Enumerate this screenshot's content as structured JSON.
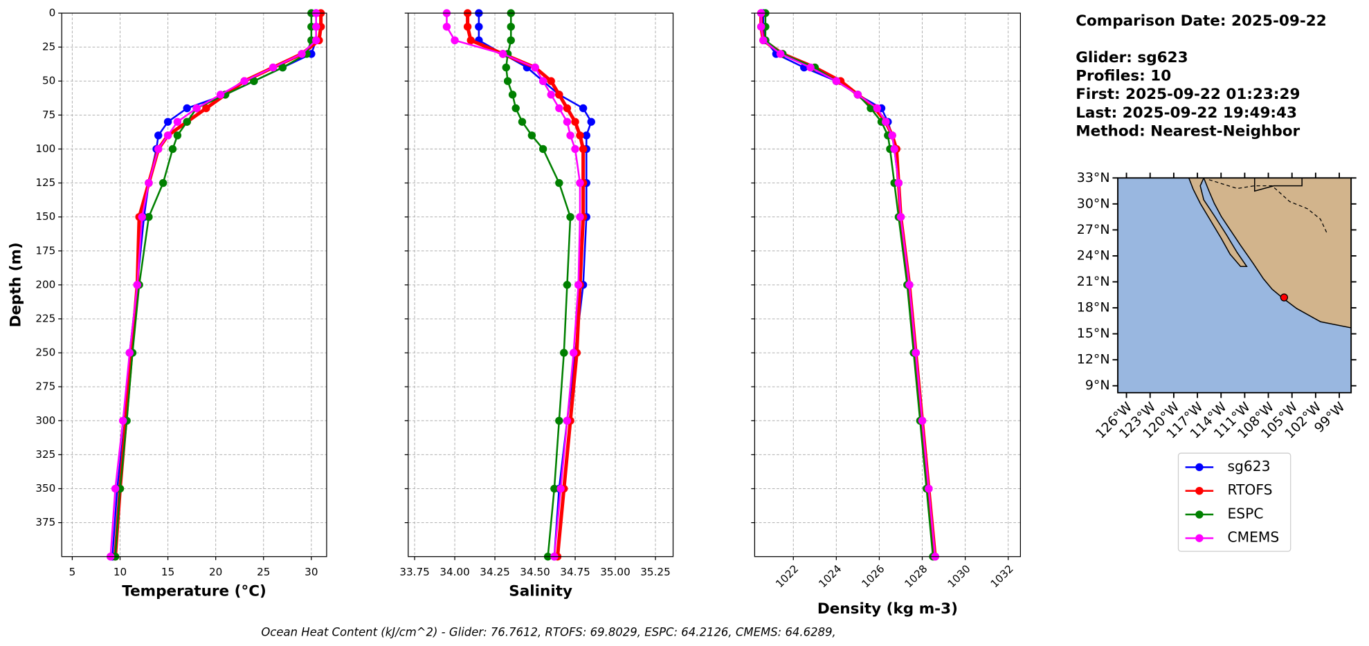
{
  "chart_data": [
    {
      "type": "line",
      "xlabel": "Temperature (°C)",
      "ylabel": "Depth (m)",
      "xlim": [
        3.9,
        31.6
      ],
      "xticks": [
        5,
        10,
        15,
        20,
        25,
        30
      ],
      "ylim": [
        0,
        400
      ],
      "yticks": [
        0,
        25,
        50,
        75,
        100,
        125,
        150,
        175,
        200,
        225,
        250,
        275,
        300,
        325,
        350,
        375
      ],
      "y_inverted": true,
      "grid": true,
      "show_ytick_labels": true,
      "depth": [
        0,
        10,
        20,
        30,
        40,
        50,
        60,
        70,
        80,
        90,
        100,
        125,
        150,
        200,
        250,
        300,
        350,
        400
      ],
      "series": [
        {
          "name": "sg623",
          "color": "#0000ff",
          "values": [
            30.5,
            30.5,
            30.5,
            30,
            27,
            24,
            21,
            17,
            15,
            14,
            13.8,
            13,
            12.5,
            11.8,
            11,
            10.5,
            9.7,
            9.2
          ]
        },
        {
          "name": "RTOFS",
          "color": "#ff0000",
          "values": [
            31,
            31,
            30.8,
            29,
            26,
            23,
            21,
            19,
            17,
            15,
            14,
            13,
            12,
            11.8,
            11.2,
            10.6,
            10,
            9.5
          ]
        },
        {
          "name": "ESPC",
          "color": "#008000",
          "values": [
            30,
            30,
            30,
            29.5,
            27,
            24,
            21,
            18,
            17,
            16,
            15.5,
            14.5,
            13,
            12,
            11.3,
            10.7,
            10,
            9.5
          ]
        },
        {
          "name": "CMEMS",
          "color": "#ff00ff",
          "values": [
            30.5,
            30.5,
            30.5,
            29,
            26,
            23,
            20.5,
            18,
            16,
            15,
            14,
            13,
            12.3,
            11.8,
            11,
            10.3,
            9.5,
            9.0
          ]
        }
      ]
    },
    {
      "type": "line",
      "xlabel": "Salinity",
      "xlim": [
        33.71,
        35.36
      ],
      "xticks": [
        33.75,
        {
          "value": 34,
          "label": "34.00"
        },
        34.25,
        {
          "value": 34.5,
          "label": "34.50"
        },
        34.75,
        {
          "value": 35,
          "label": "35.00"
        },
        35.25
      ],
      "ylim": [
        0,
        400
      ],
      "yticks": [
        0,
        25,
        50,
        75,
        100,
        125,
        150,
        175,
        200,
        225,
        250,
        275,
        300,
        325,
        350,
        375
      ],
      "y_inverted": true,
      "grid": true,
      "show_ytick_labels": false,
      "depth": [
        0,
        10,
        20,
        30,
        40,
        50,
        60,
        70,
        80,
        90,
        100,
        125,
        150,
        200,
        250,
        300,
        350,
        400
      ],
      "series": [
        {
          "name": "sg623",
          "color": "#0000ff",
          "values": [
            34.15,
            34.15,
            34.15,
            34.3,
            34.45,
            34.55,
            34.65,
            34.8,
            34.85,
            34.82,
            34.82,
            34.82,
            34.82,
            34.8,
            34.75,
            34.7,
            34.65,
            34.62
          ]
        },
        {
          "name": "RTOFS",
          "color": "#ff0000",
          "values": [
            34.08,
            34.08,
            34.1,
            34.3,
            34.5,
            34.6,
            34.65,
            34.7,
            34.75,
            34.78,
            34.8,
            34.8,
            34.8,
            34.78,
            34.76,
            34.72,
            34.68,
            34.64
          ]
        },
        {
          "name": "ESPC",
          "color": "#008000",
          "values": [
            34.35,
            34.35,
            34.35,
            34.33,
            34.32,
            34.33,
            34.36,
            34.38,
            34.42,
            34.48,
            34.55,
            34.65,
            34.72,
            34.7,
            34.68,
            34.65,
            34.62,
            34.58
          ]
        },
        {
          "name": "CMEMS",
          "color": "#ff00ff",
          "values": [
            33.95,
            33.95,
            34.0,
            34.3,
            34.5,
            34.55,
            34.6,
            34.65,
            34.7,
            34.72,
            34.75,
            34.78,
            34.78,
            34.77,
            34.74,
            34.7,
            34.66,
            34.62
          ]
        }
      ]
    },
    {
      "type": "line",
      "xlabel": "Density (kg m-3)",
      "xlim": [
        1020.2,
        1032.57
      ],
      "xticks": [
        1022,
        1024,
        1026,
        1028,
        1030,
        1032
      ],
      "xtick_rotation": 45,
      "ylim": [
        0,
        400
      ],
      "yticks": [
        0,
        25,
        50,
        75,
        100,
        125,
        150,
        175,
        200,
        225,
        250,
        275,
        300,
        325,
        350,
        375
      ],
      "y_inverted": true,
      "grid": true,
      "show_ytick_labels": false,
      "depth": [
        0,
        10,
        20,
        30,
        40,
        50,
        60,
        70,
        80,
        90,
        100,
        125,
        150,
        200,
        250,
        300,
        350,
        400
      ],
      "series": [
        {
          "name": "sg623",
          "color": "#0000ff",
          "values": [
            1020.6,
            1020.6,
            1020.7,
            1021.2,
            1022.5,
            1024,
            1025,
            1026.1,
            1026.4,
            1026.6,
            1026.7,
            1026.9,
            1027.0,
            1027.4,
            1027.7,
            1028.0,
            1028.3,
            1028.6
          ]
        },
        {
          "name": "RTOFS",
          "color": "#ff0000",
          "values": [
            1020.5,
            1020.5,
            1020.6,
            1021.5,
            1023,
            1024.2,
            1025,
            1025.8,
            1026.3,
            1026.6,
            1026.8,
            1026.9,
            1027.0,
            1027.4,
            1027.7,
            1028.0,
            1028.3,
            1028.6
          ]
        },
        {
          "name": "ESPC",
          "color": "#008000",
          "values": [
            1020.7,
            1020.7,
            1020.7,
            1021.5,
            1023,
            1024,
            1025,
            1025.6,
            1026.1,
            1026.4,
            1026.5,
            1026.7,
            1026.9,
            1027.3,
            1027.6,
            1027.9,
            1028.2,
            1028.5
          ]
        },
        {
          "name": "CMEMS",
          "color": "#ff00ff",
          "values": [
            1020.5,
            1020.5,
            1020.6,
            1021.4,
            1022.8,
            1024,
            1025,
            1025.9,
            1026.3,
            1026.6,
            1026.7,
            1026.9,
            1027.0,
            1027.4,
            1027.7,
            1028.0,
            1028.3,
            1028.6
          ]
        }
      ]
    },
    {
      "type": "map",
      "xlim": [
        -127.1,
        -97.5
      ],
      "ylim": [
        8.2,
        33
      ],
      "xticks": [
        {
          "value": -126,
          "label": "126°W"
        },
        {
          "value": -123,
          "label": "123°W"
        },
        {
          "value": -120,
          "label": "120°W"
        },
        {
          "value": -117,
          "label": "117°W"
        },
        {
          "value": -114,
          "label": "114°W"
        },
        {
          "value": -111,
          "label": "111°W"
        },
        {
          "value": -108,
          "label": "108°W"
        },
        {
          "value": -105,
          "label": "105°W"
        },
        {
          "value": -102,
          "label": "102°W"
        },
        {
          "value": -99,
          "label": "99°W"
        }
      ],
      "yticks": [
        {
          "value": 33,
          "label": "33°N"
        },
        {
          "value": 30,
          "label": "30°N"
        },
        {
          "value": 27,
          "label": "27°N"
        },
        {
          "value": 24,
          "label": "24°N"
        },
        {
          "value": 21,
          "label": "21°N"
        },
        {
          "value": 18,
          "label": "18°N"
        },
        {
          "value": 15,
          "label": "15°N"
        },
        {
          "value": 12,
          "label": "12°N"
        },
        {
          "value": 9,
          "label": "9°N"
        }
      ],
      "glider_position": {
        "lon": -106,
        "lat": 19.2,
        "color": "#ff0000"
      }
    }
  ],
  "info": {
    "title": "Comparison Date: 2025-09-22",
    "lines": [
      "Glider: sg623",
      "Profiles: 10",
      "First: 2025-09-22 01:23:29",
      "Last: 2025-09-22 19:49:43",
      "Method: Nearest-Neighbor"
    ]
  },
  "footer": "Ocean Heat Content (kJ/cm^2) - Glider: 76.7612,  RTOFS: 69.8029,  ESPC: 64.2126,  CMEMS: 64.6289,"
}
